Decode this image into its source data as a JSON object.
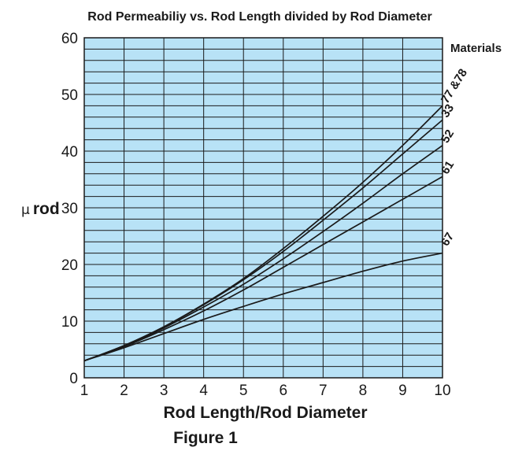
{
  "chart_data": {
    "type": "line",
    "title": "Rod Permeabiliy vs. Rod Length divided by Rod Diameter",
    "xlabel": "Rod Length/Rod Diameter",
    "ylabel_symbol": "μ",
    "ylabel_text": "rod",
    "xlim": [
      1,
      10
    ],
    "ylim": [
      0,
      60
    ],
    "xticks": [
      "1",
      "2",
      "3",
      "4",
      "5",
      "6",
      "7",
      "8",
      "9",
      "10"
    ],
    "yticks": [
      "0",
      "10",
      "20",
      "30",
      "40",
      "50",
      "60"
    ],
    "grid": true,
    "legend_title": "Materials",
    "legend_placement": "right",
    "plot_background": "#b8e2f6",
    "line_color": "#1a1a1a",
    "caption": "Figure 1",
    "series": [
      {
        "name": "77 &78",
        "x": [
          1,
          2,
          3,
          4,
          5,
          6,
          7,
          8,
          9,
          10
        ],
        "y": [
          3.0,
          5.7,
          9.0,
          13.0,
          17.5,
          22.8,
          28.5,
          34.5,
          41.0,
          48.0
        ]
      },
      {
        "name": "33",
        "x": [
          1,
          2,
          3,
          4,
          5,
          6,
          7,
          8,
          9,
          10
        ],
        "y": [
          3.0,
          5.7,
          9.0,
          12.9,
          17.3,
          22.3,
          27.8,
          33.5,
          39.5,
          45.5
        ]
      },
      {
        "name": "52",
        "x": [
          1,
          2,
          3,
          4,
          5,
          6,
          7,
          8,
          9,
          10
        ],
        "y": [
          3.0,
          5.6,
          8.8,
          12.5,
          16.5,
          21.0,
          25.8,
          30.8,
          36.0,
          41.0
        ]
      },
      {
        "name": "61",
        "x": [
          1,
          2,
          3,
          4,
          5,
          6,
          7,
          8,
          9,
          10
        ],
        "y": [
          3.0,
          5.5,
          8.5,
          11.8,
          15.5,
          19.5,
          23.5,
          27.5,
          31.5,
          35.5
        ]
      },
      {
        "name": "67",
        "x": [
          1,
          2,
          3,
          4,
          5,
          6,
          7,
          8,
          9,
          10
        ],
        "y": [
          3.0,
          5.3,
          7.8,
          10.3,
          12.6,
          14.8,
          16.8,
          18.8,
          20.6,
          22.0
        ]
      }
    ]
  }
}
